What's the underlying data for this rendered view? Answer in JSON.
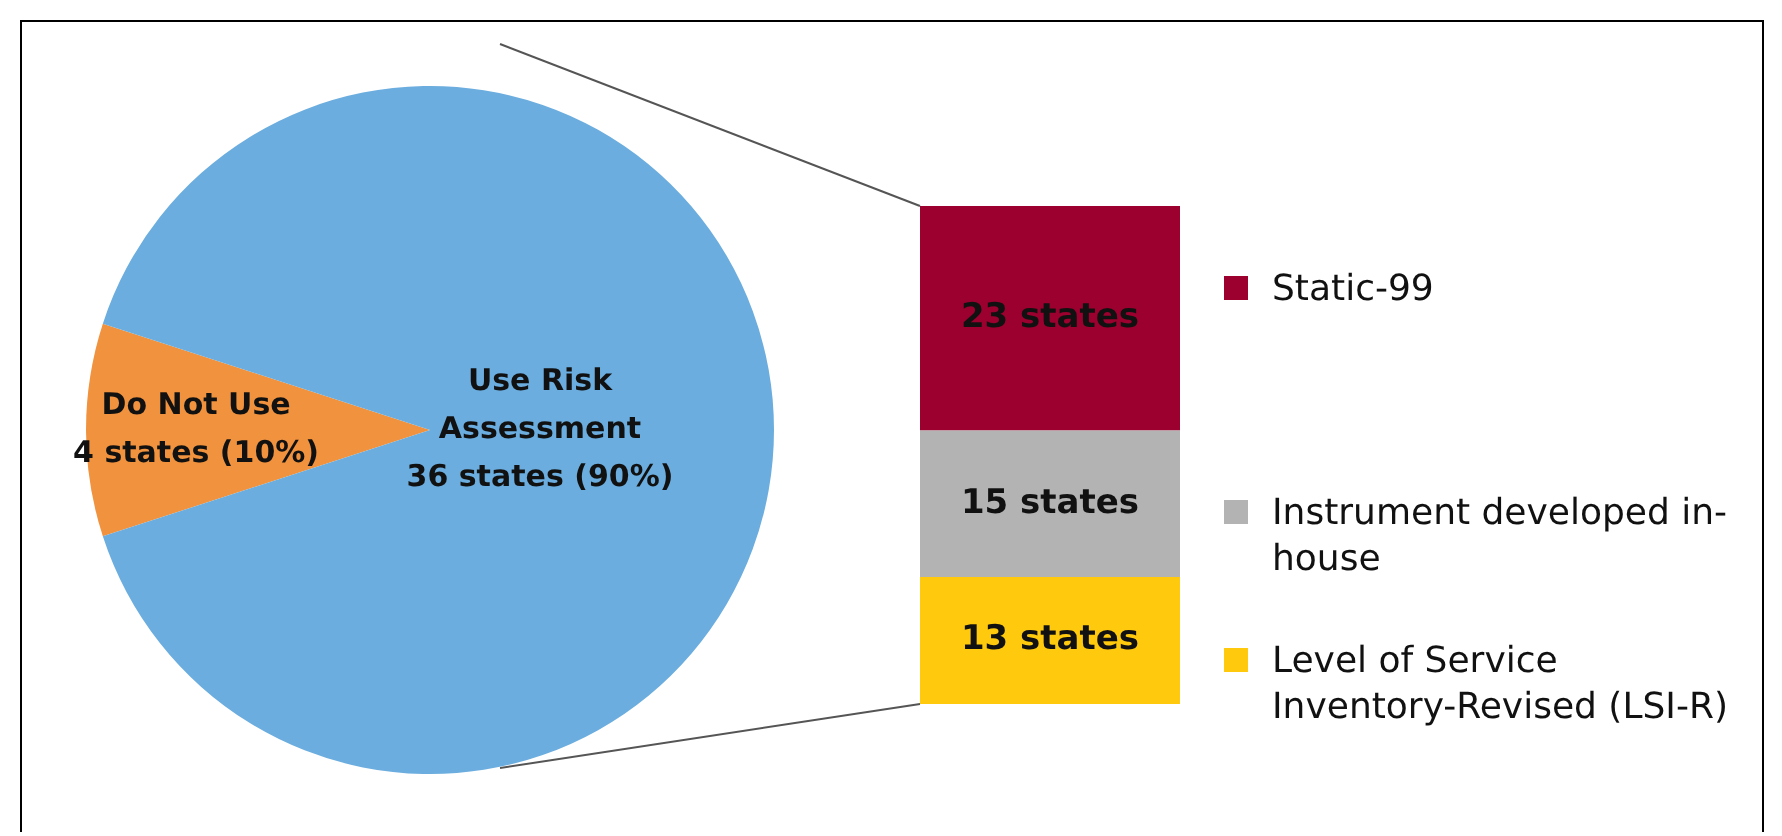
{
  "chart_data": [
    {
      "type": "pie",
      "categories": [
        "Do Not Use",
        "Use Risk Assessment"
      ],
      "values": [
        4,
        36
      ],
      "colors": [
        "#f0923e",
        "#6badde"
      ],
      "value_labels": [
        "4 states (10%)",
        "36 states (90%)"
      ],
      "legend": false
    },
    {
      "type": "bar",
      "stacked": true,
      "categories": [
        null
      ],
      "legend": "right",
      "series": [
        {
          "name": "Level of Service Inventory-Revised (LSI-R)",
          "color": "#ffc90e",
          "values": [
            13
          ],
          "value_labels": [
            "13 states"
          ]
        },
        {
          "name": "Instrument developed in-house",
          "color": "#b3b3b3",
          "values": [
            15
          ],
          "value_labels": [
            "15 states"
          ]
        },
        {
          "name": "Static-99",
          "color": "#9b002e",
          "values": [
            23
          ],
          "value_labels": [
            "23 states"
          ]
        }
      ]
    }
  ]
}
